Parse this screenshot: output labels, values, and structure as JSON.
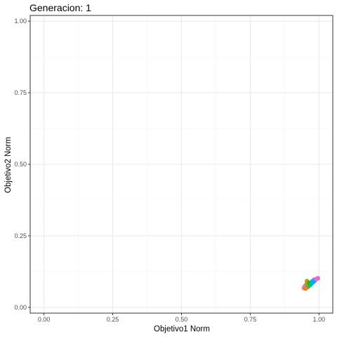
{
  "chart_data": {
    "type": "scatter",
    "title": "Generacion: 1",
    "xlabel": "Objetivo1 Norm",
    "ylabel": "Objetivo2 Norm",
    "xlim": [
      -0.05,
      1.05
    ],
    "ylim": [
      -0.02,
      1.02
    ],
    "xticks": [
      0.0,
      0.25,
      0.5,
      0.75,
      1.0
    ],
    "yticks": [
      0.0,
      0.25,
      0.5,
      0.75,
      1.0
    ],
    "xtick_labels": [
      "0.00",
      "0.25",
      "0.50",
      "0.75",
      "1.00"
    ],
    "ytick_labels": [
      "0.00",
      "0.25",
      "0.50",
      "0.75",
      "1.00"
    ],
    "grid": true,
    "legend": "none",
    "points": [
      {
        "x": 0.945,
        "y": 0.068,
        "color": "#F8766D"
      },
      {
        "x": 0.948,
        "y": 0.074,
        "color": "#E76BF3"
      },
      {
        "x": 0.951,
        "y": 0.066,
        "color": "#E58700"
      },
      {
        "x": 0.955,
        "y": 0.082,
        "color": "#A3A500"
      },
      {
        "x": 0.956,
        "y": 0.092,
        "color": "#C99800"
      },
      {
        "x": 0.958,
        "y": 0.07,
        "color": "#FF6C91"
      },
      {
        "x": 0.962,
        "y": 0.074,
        "color": "#6BB100"
      },
      {
        "x": 0.965,
        "y": 0.086,
        "color": "#00BA38"
      },
      {
        "x": 0.968,
        "y": 0.079,
        "color": "#00C08B"
      },
      {
        "x": 0.972,
        "y": 0.083,
        "color": "#00BF7D"
      },
      {
        "x": 0.975,
        "y": 0.091,
        "color": "#00BCD8"
      },
      {
        "x": 0.978,
        "y": 0.088,
        "color": "#00B0F6"
      },
      {
        "x": 0.982,
        "y": 0.097,
        "color": "#619CFF"
      },
      {
        "x": 0.985,
        "y": 0.094,
        "color": "#00A9FF"
      },
      {
        "x": 0.99,
        "y": 0.099,
        "color": "#E76BF3"
      },
      {
        "x": 0.996,
        "y": 0.102,
        "color": "#FF61C3"
      }
    ]
  },
  "colors": {
    "panel_border": "#333333",
    "grid_major": "#ebebeb",
    "grid_minor": "#f5f5f5",
    "tick": "#333333"
  }
}
